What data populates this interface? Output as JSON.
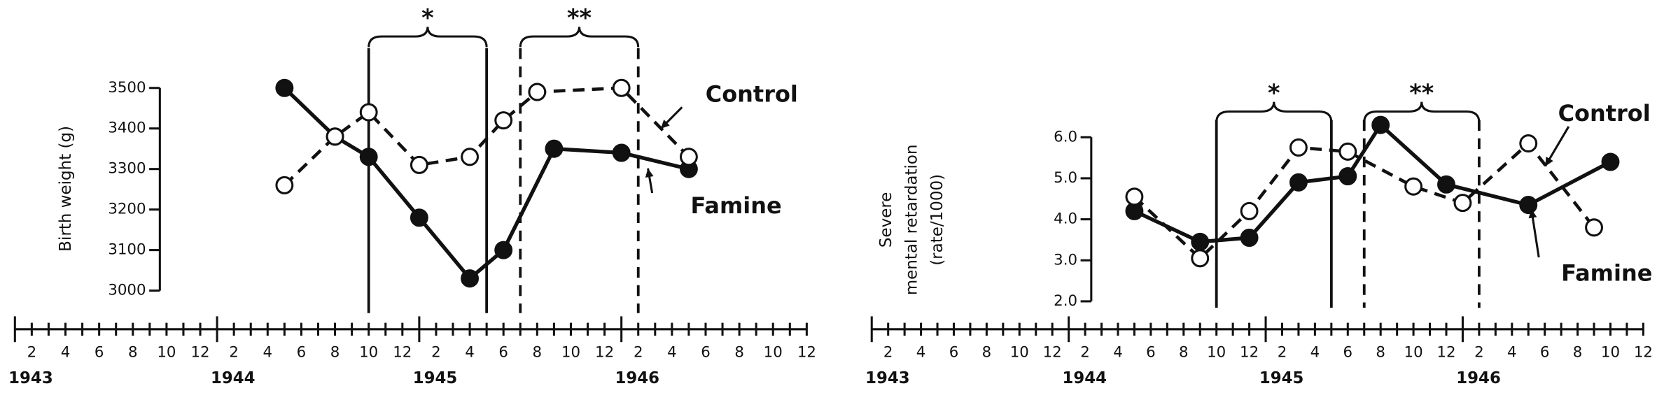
{
  "chart_data": [
    {
      "type": "line",
      "ylabel": [
        "Birth weight (g)"
      ],
      "xlim": [
        "1943-01",
        "1946-12"
      ],
      "ylim": [
        3000,
        3500
      ],
      "yticks": [
        3000,
        3100,
        3200,
        3300,
        3400,
        3500
      ],
      "xticks": [
        {
          "value": "1943-02",
          "label": "2"
        },
        {
          "value": "1943-04",
          "label": "4"
        },
        {
          "value": "1943-06",
          "label": "6"
        },
        {
          "value": "1943-08",
          "label": "8"
        },
        {
          "value": "1943-10",
          "label": "10"
        },
        {
          "value": "1943-12",
          "label": "12"
        },
        {
          "value": "1944-02",
          "label": "2"
        },
        {
          "value": "1944-04",
          "label": "4"
        },
        {
          "value": "1944-06",
          "label": "6"
        },
        {
          "value": "1944-08",
          "label": "8"
        },
        {
          "value": "1944-10",
          "label": "10"
        },
        {
          "value": "1944-12",
          "label": "12"
        },
        {
          "value": "1945-02",
          "label": "2"
        },
        {
          "value": "1945-04",
          "label": "4"
        },
        {
          "value": "1945-06",
          "label": "6"
        },
        {
          "value": "1945-08",
          "label": "8"
        },
        {
          "value": "1945-10",
          "label": "10"
        },
        {
          "value": "1945-12",
          "label": "12"
        },
        {
          "value": "1946-02",
          "label": "2"
        },
        {
          "value": "1946-04",
          "label": "4"
        },
        {
          "value": "1946-06",
          "label": "6"
        },
        {
          "value": "1946-08",
          "label": "8"
        },
        {
          "value": "1946-10",
          "label": "10"
        },
        {
          "value": "1946-12",
          "label": "12"
        }
      ],
      "xminorticks": [
        "1943-01",
        "1943-03",
        "1943-05",
        "1943-07",
        "1943-09",
        "1943-11",
        "1944-01",
        "1944-03",
        "1944-05",
        "1944-07",
        "1944-09",
        "1944-11",
        "1945-01",
        "1945-03",
        "1945-05",
        "1945-07",
        "1945-09",
        "1945-11",
        "1946-01",
        "1946-03",
        "1946-05",
        "1946-07",
        "1946-09",
        "1946-11"
      ],
      "years": [
        {
          "value": "1943-01",
          "label": "1943"
        },
        {
          "value": "1944-01",
          "label": "1944"
        },
        {
          "value": "1945-01",
          "label": "1945"
        },
        {
          "value": "1946-01",
          "label": "1946"
        }
      ],
      "periods": [
        {
          "label": "*",
          "start": "1944-10",
          "end": "1945-05",
          "style": "solid"
        },
        {
          "label": "**",
          "start": "1945-07",
          "end": "1946-02",
          "style": "dashed"
        }
      ],
      "series": [
        {
          "name": "Famine",
          "color": "#111",
          "fill": "#111",
          "dashed": false,
          "x": [
            "1944-05",
            "1944-08",
            "1944-10",
            "1945-01",
            "1945-04",
            "1945-06",
            "1945-09",
            "1946-01",
            "1946-05"
          ],
          "values": [
            3500,
            3380,
            3330,
            3180,
            3030,
            3100,
            3350,
            3340,
            3300
          ]
        },
        {
          "name": "Control",
          "color": "#111",
          "fill": "#fff",
          "dashed": true,
          "x": [
            "1944-05",
            "1944-08",
            "1944-10",
            "1945-01",
            "1945-04",
            "1945-06",
            "1945-08",
            "1946-01",
            "1946-05"
          ],
          "values": [
            3260,
            3380,
            3440,
            3310,
            3330,
            3420,
            3490,
            3500,
            3330
          ]
        }
      ]
    },
    {
      "type": "line",
      "ylabel": [
        "Severe",
        "mental retardation",
        "(rate/1000)"
      ],
      "xlim": [
        "1943-01",
        "1946-12"
      ],
      "ylim": [
        2,
        6
      ],
      "yticks": [
        {
          "value": 2,
          "label": "2.0"
        },
        {
          "value": 3,
          "label": "3.0"
        },
        {
          "value": 4,
          "label": "4.0"
        },
        {
          "value": 5,
          "label": "5.0"
        },
        {
          "value": 6,
          "label": "6.0"
        }
      ],
      "xticks": [
        {
          "value": "1943-02",
          "label": "2"
        },
        {
          "value": "1943-04",
          "label": "4"
        },
        {
          "value": "1943-06",
          "label": "6"
        },
        {
          "value": "1943-08",
          "label": "8"
        },
        {
          "value": "1943-10",
          "label": "10"
        },
        {
          "value": "1943-12",
          "label": "12"
        },
        {
          "value": "1944-02",
          "label": "2"
        },
        {
          "value": "1944-04",
          "label": "4"
        },
        {
          "value": "1944-06",
          "label": "6"
        },
        {
          "value": "1944-08",
          "label": "8"
        },
        {
          "value": "1944-10",
          "label": "10"
        },
        {
          "value": "1944-12",
          "label": "12"
        },
        {
          "value": "1945-02",
          "label": "2"
        },
        {
          "value": "1945-04",
          "label": "4"
        },
        {
          "value": "1945-06",
          "label": "6"
        },
        {
          "value": "1945-08",
          "label": "8"
        },
        {
          "value": "1945-10",
          "label": "10"
        },
        {
          "value": "1945-12",
          "label": "12"
        },
        {
          "value": "1946-02",
          "label": "2"
        },
        {
          "value": "1946-04",
          "label": "4"
        },
        {
          "value": "1946-06",
          "label": "6"
        },
        {
          "value": "1946-08",
          "label": "8"
        },
        {
          "value": "1946-10",
          "label": "10"
        },
        {
          "value": "1946-12",
          "label": "12"
        }
      ],
      "xminorticks": [
        "1943-01",
        "1943-03",
        "1943-05",
        "1943-07",
        "1943-09",
        "1943-11",
        "1944-01",
        "1944-03",
        "1944-05",
        "1944-07",
        "1944-09",
        "1944-11",
        "1945-01",
        "1945-03",
        "1945-05",
        "1945-07",
        "1945-09",
        "1945-11",
        "1946-01",
        "1946-03",
        "1946-05",
        "1946-07",
        "1946-09",
        "1946-11"
      ],
      "years": [
        {
          "value": "1943-01",
          "label": "1943"
        },
        {
          "value": "1944-01",
          "label": "1944"
        },
        {
          "value": "1945-01",
          "label": "1945"
        },
        {
          "value": "1946-01",
          "label": "1946"
        }
      ],
      "periods": [
        {
          "label": "*",
          "start": "1944-10",
          "end": "1945-05",
          "style": "solid"
        },
        {
          "label": "**",
          "start": "1945-07",
          "end": "1946-02",
          "style": "dashed"
        }
      ],
      "series": [
        {
          "name": "Famine",
          "color": "#111",
          "fill": "#111",
          "dashed": false,
          "x": [
            "1944-05",
            "1944-09",
            "1944-12",
            "1945-03",
            "1945-06",
            "1945-08",
            "1945-12",
            "1946-05",
            "1946-10"
          ],
          "values": [
            4.2,
            3.45,
            3.55,
            4.9,
            5.05,
            6.3,
            4.85,
            4.35,
            5.4
          ]
        },
        {
          "name": "Control",
          "color": "#111",
          "fill": "#fff",
          "dashed": true,
          "x": [
            "1944-05",
            "1944-09",
            "1944-12",
            "1945-03",
            "1945-06",
            "1945-10",
            "1946-01",
            "1946-05",
            "1946-09"
          ],
          "values": [
            4.55,
            3.05,
            4.2,
            5.75,
            5.65,
            4.8,
            4.4,
            5.85,
            3.8
          ]
        }
      ]
    }
  ]
}
